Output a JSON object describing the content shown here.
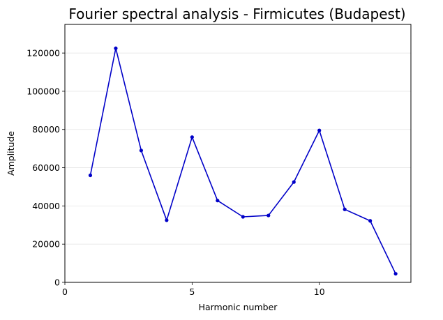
{
  "chart_data": {
    "type": "line",
    "title": "Fourier spectral analysis - Firmicutes (Budapest)",
    "xlabel": "Harmonic number",
    "ylabel": "Amplitude",
    "xlim": [
      0,
      13.6
    ],
    "ylim": [
      0,
      135000
    ],
    "xticks": [
      0,
      5,
      10
    ],
    "yticks": [
      0,
      20000,
      40000,
      60000,
      80000,
      100000,
      120000
    ],
    "grid": "horizontal",
    "legend": "none",
    "series": [
      {
        "color": "#0000c8",
        "x": [
          1,
          2,
          3,
          4,
          5,
          6,
          7,
          8,
          9,
          10,
          11,
          12,
          13
        ],
        "y": [
          56000,
          122500,
          69000,
          32500,
          76000,
          42800,
          34300,
          35000,
          52500,
          79500,
          38200,
          32200,
          4500
        ]
      }
    ]
  }
}
